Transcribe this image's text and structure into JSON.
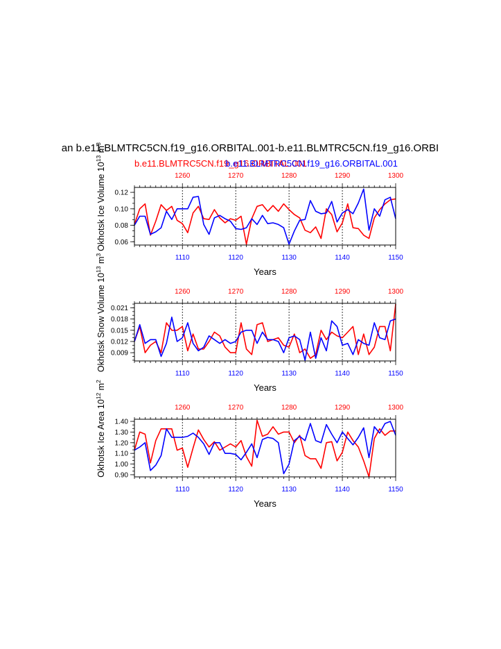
{
  "title": "an b.e11.BLMTRC5CN.f19_g16.ORBITAL.001-b.e11.BLMTRC5CN.f19_g16.ORBI",
  "subtitle_red": "b.e11.BLMTRC5CN.f19_g16.ORBITAL.001",
  "subtitle_blue": "b.e11.BLMTRC5CN.f19_g16.ORBITAL.001",
  "colors": {
    "red": "#ff0000",
    "blue": "#0000ff"
  },
  "chart_data": [
    {
      "type": "line",
      "ylabel": "Okhotsk Ice Volume 10",
      "ylabel_exp": "13",
      "ylabel_unit": " m",
      "ylabel_unit_exp": "3",
      "xlabel": "Years",
      "xlim": [
        1101,
        1150
      ],
      "ylim": [
        0.056,
        0.126
      ],
      "yticks": [
        0.06,
        0.08,
        0.1,
        0.12
      ],
      "ytick_labels": [
        "0.06",
        "0.08",
        "0.10",
        "0.12"
      ],
      "bottom_ticks": [
        1110,
        1120,
        1130,
        1140,
        1150
      ],
      "top_ticks": [
        1260,
        1270,
        1280,
        1290,
        1300
      ],
      "top_ticks_pos": [
        1110,
        1120,
        1130,
        1140,
        1150
      ],
      "x": [
        1101,
        1102,
        1103,
        1104,
        1105,
        1106,
        1107,
        1108,
        1109,
        1110,
        1111,
        1112,
        1113,
        1114,
        1115,
        1116,
        1117,
        1118,
        1119,
        1120,
        1121,
        1122,
        1123,
        1124,
        1125,
        1126,
        1127,
        1128,
        1129,
        1130,
        1131,
        1132,
        1133,
        1134,
        1135,
        1136,
        1137,
        1138,
        1139,
        1140,
        1141,
        1142,
        1143,
        1144,
        1145,
        1146,
        1147,
        1148,
        1149,
        1150
      ],
      "series": [
        {
          "color": "red",
          "values": [
            0.081,
            0.1,
            0.106,
            0.068,
            0.085,
            0.105,
            0.098,
            0.103,
            0.086,
            0.082,
            0.071,
            0.095,
            0.103,
            0.088,
            0.087,
            0.099,
            0.089,
            0.083,
            0.088,
            0.086,
            0.091,
            0.057,
            0.088,
            0.103,
            0.105,
            0.097,
            0.104,
            0.097,
            0.106,
            0.099,
            0.093,
            0.089,
            0.074,
            0.071,
            0.078,
            0.064,
            0.1,
            0.093,
            0.072,
            0.083,
            0.106,
            0.077,
            0.076,
            0.068,
            0.064,
            0.089,
            0.099,
            0.106,
            0.111,
            0.112
          ]
        },
        {
          "color": "blue",
          "values": [
            0.08,
            0.091,
            0.091,
            0.069,
            0.072,
            0.077,
            0.097,
            0.087,
            0.1,
            0.1,
            0.1,
            0.114,
            0.115,
            0.081,
            0.069,
            0.089,
            0.092,
            0.088,
            0.085,
            0.076,
            0.075,
            0.077,
            0.088,
            0.081,
            0.092,
            0.082,
            0.083,
            0.081,
            0.077,
            0.057,
            0.073,
            0.086,
            0.087,
            0.11,
            0.097,
            0.094,
            0.095,
            0.109,
            0.084,
            0.095,
            0.099,
            0.094,
            0.107,
            0.124,
            0.074,
            0.1,
            0.091,
            0.111,
            0.114,
            0.088
          ]
        }
      ]
    },
    {
      "type": "line",
      "ylabel": "Okhotsk Snow Volume 10",
      "ylabel_exp": "13",
      "ylabel_unit": " m",
      "ylabel_unit_exp": "3",
      "xlabel": "Years",
      "xlim": [
        1101,
        1150
      ],
      "ylim": [
        0.0068,
        0.0222
      ],
      "yticks": [
        0.009,
        0.012,
        0.015,
        0.018,
        0.021
      ],
      "ytick_labels": [
        "0.009",
        "0.012",
        "0.015",
        "0.018",
        "0.021"
      ],
      "bottom_ticks": [
        1110,
        1120,
        1130,
        1140,
        1150
      ],
      "top_ticks": [
        1260,
        1270,
        1280,
        1290,
        1300
      ],
      "top_ticks_pos": [
        1110,
        1120,
        1130,
        1140,
        1150
      ],
      "x": [
        1101,
        1102,
        1103,
        1104,
        1105,
        1106,
        1107,
        1108,
        1109,
        1110,
        1111,
        1112,
        1113,
        1114,
        1115,
        1116,
        1117,
        1118,
        1119,
        1120,
        1121,
        1122,
        1123,
        1124,
        1125,
        1126,
        1127,
        1128,
        1129,
        1130,
        1131,
        1132,
        1133,
        1134,
        1135,
        1136,
        1137,
        1138,
        1139,
        1140,
        1141,
        1142,
        1143,
        1144,
        1145,
        1146,
        1147,
        1148,
        1149,
        1150
      ],
      "series": [
        {
          "color": "red",
          "values": [
            0.012,
            0.016,
            0.009,
            0.011,
            0.012,
            0.009,
            0.017,
            0.015,
            0.015,
            0.016,
            0.0095,
            0.014,
            0.01,
            0.01,
            0.012,
            0.0145,
            0.0135,
            0.0105,
            0.009,
            0.009,
            0.017,
            0.01,
            0.0085,
            0.0165,
            0.017,
            0.012,
            0.0125,
            0.013,
            0.011,
            0.0105,
            0.014,
            0.009,
            0.01,
            0.0075,
            0.0085,
            0.015,
            0.0125,
            0.0145,
            0.0135,
            0.013,
            0.0145,
            0.016,
            0.0085,
            0.014,
            0.0085,
            0.0105,
            0.016,
            0.016,
            0.0095,
            0.022
          ]
        },
        {
          "color": "blue",
          "values": [
            0.012,
            0.0165,
            0.0115,
            0.0125,
            0.0125,
            0.008,
            0.0115,
            0.0185,
            0.012,
            0.013,
            0.017,
            0.0115,
            0.0095,
            0.0105,
            0.0135,
            0.0125,
            0.0115,
            0.0125,
            0.0115,
            0.012,
            0.0145,
            0.015,
            0.015,
            0.0115,
            0.0145,
            0.0125,
            0.0125,
            0.012,
            0.009,
            0.013,
            0.0135,
            0.0125,
            0.007,
            0.0145,
            0.0075,
            0.013,
            0.0095,
            0.0175,
            0.016,
            0.011,
            0.0115,
            0.0085,
            0.0125,
            0.0115,
            0.011,
            0.017,
            0.013,
            0.0125,
            0.0175,
            0.018
          ]
        }
      ]
    },
    {
      "type": "line",
      "ylabel": "Okhotsk Ice Area 10",
      "ylabel_exp": "12",
      "ylabel_unit": " m",
      "ylabel_unit_exp": "2",
      "xlabel": "Years",
      "xlim": [
        1101,
        1150
      ],
      "ylim": [
        0.88,
        1.42
      ],
      "yticks": [
        0.9,
        1.0,
        1.1,
        1.2,
        1.3,
        1.4
      ],
      "ytick_labels": [
        "0.90",
        "1.00",
        "1.10",
        "1.20",
        "1.30",
        "1.40"
      ],
      "bottom_ticks": [
        1110,
        1120,
        1130,
        1140,
        1150
      ],
      "top_ticks": [
        1260,
        1270,
        1280,
        1290,
        1300
      ],
      "top_ticks_pos": [
        1110,
        1120,
        1130,
        1140,
        1150
      ],
      "x": [
        1101,
        1102,
        1103,
        1104,
        1105,
        1106,
        1107,
        1108,
        1109,
        1110,
        1111,
        1112,
        1113,
        1114,
        1115,
        1116,
        1117,
        1118,
        1119,
        1120,
        1121,
        1122,
        1123,
        1124,
        1125,
        1126,
        1127,
        1128,
        1129,
        1130,
        1131,
        1132,
        1133,
        1134,
        1135,
        1136,
        1137,
        1138,
        1139,
        1140,
        1141,
        1142,
        1143,
        1144,
        1145,
        1146,
        1147,
        1148,
        1149,
        1150
      ],
      "series": [
        {
          "color": "red",
          "values": [
            1.13,
            1.3,
            1.28,
            1.01,
            1.22,
            1.33,
            1.33,
            1.33,
            1.13,
            1.15,
            0.97,
            1.15,
            1.32,
            1.23,
            1.16,
            1.21,
            1.13,
            1.16,
            1.19,
            1.16,
            1.22,
            1.07,
            0.98,
            1.41,
            1.26,
            1.28,
            1.35,
            1.28,
            1.3,
            1.3,
            1.2,
            1.27,
            1.08,
            1.05,
            1.05,
            0.96,
            1.2,
            1.21,
            1.03,
            1.11,
            1.3,
            1.22,
            1.16,
            1.03,
            0.88,
            1.24,
            1.33,
            1.27,
            1.31,
            1.31
          ]
        },
        {
          "color": "blue",
          "values": [
            1.13,
            1.16,
            1.2,
            0.94,
            0.99,
            1.08,
            1.33,
            1.25,
            1.25,
            1.25,
            1.26,
            1.29,
            1.25,
            1.19,
            1.09,
            1.2,
            1.2,
            1.1,
            1.1,
            1.09,
            1.04,
            1.11,
            1.19,
            1.06,
            1.23,
            1.25,
            1.24,
            1.2,
            0.91,
            1.0,
            1.22,
            1.26,
            1.22,
            1.38,
            1.22,
            1.2,
            1.37,
            1.28,
            1.2,
            1.3,
            1.24,
            1.18,
            1.25,
            1.34,
            1.06,
            1.35,
            1.29,
            1.38,
            1.4,
            1.27
          ]
        }
      ]
    }
  ]
}
